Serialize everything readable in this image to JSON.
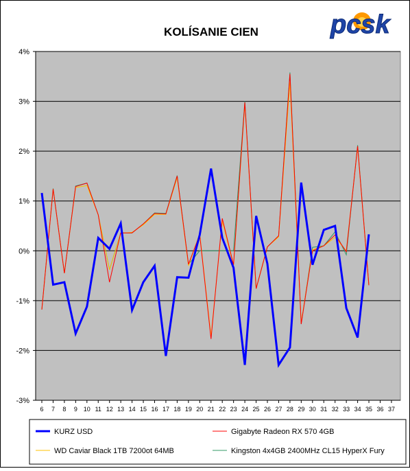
{
  "chart_data": {
    "type": "line",
    "title": "KOLÍSANIE CIEN",
    "logo": "pcsk",
    "ylim": [
      -3,
      4
    ],
    "yticks": [
      "-3%",
      "-2%",
      "-1%",
      "0%",
      "1%",
      "2%",
      "3%",
      "4%"
    ],
    "yticks_values": [
      -3,
      -2,
      -1,
      0,
      1,
      2,
      3,
      4
    ],
    "x": [
      6,
      7,
      8,
      9,
      10,
      11,
      12,
      13,
      14,
      15,
      16,
      17,
      18,
      19,
      20,
      21,
      22,
      23,
      24,
      25,
      26,
      27,
      28,
      29,
      30,
      31,
      32,
      33,
      34,
      35,
      36,
      37
    ],
    "grid": "horizontal",
    "legend_placement": "bottom",
    "series": [
      {
        "name": "KURZ USD",
        "color": "#0000ff",
        "x": [
          6,
          7,
          8,
          9,
          10,
          11,
          12,
          13,
          14,
          15,
          16,
          17,
          18,
          19,
          20,
          21,
          22,
          23,
          24,
          25,
          26,
          27,
          28,
          29,
          30,
          31,
          32,
          33,
          34,
          35
        ],
        "values": [
          1.16,
          -0.68,
          -0.63,
          -1.66,
          -1.12,
          0.26,
          0.04,
          0.55,
          -1.19,
          -0.63,
          -0.3,
          -2.11,
          -0.53,
          -0.54,
          0.32,
          1.65,
          0.26,
          -0.34,
          -2.29,
          0.7,
          -0.26,
          -2.29,
          -1.94,
          1.37,
          -0.28,
          0.42,
          0.5,
          -1.15,
          -1.74,
          0.33
        ]
      },
      {
        "name": "Gigabyte Radeon RX 570 4GB",
        "color": "#ff0000",
        "x": [
          6,
          7,
          8,
          9,
          10,
          11,
          12,
          13,
          14,
          15,
          16,
          17,
          18,
          19,
          20,
          21,
          22,
          23,
          24,
          25,
          26,
          27,
          28,
          29,
          30,
          31,
          32,
          33,
          34,
          35
        ],
        "values": [
          -1.18,
          1.24,
          -0.45,
          1.29,
          1.36,
          0.72,
          -0.63,
          0.36,
          0.36,
          0.54,
          0.75,
          0.74,
          1.5,
          -0.27,
          0.32,
          -1.77,
          0.65,
          -0.28,
          2.98,
          -0.76,
          0.08,
          0.3,
          3.55,
          -1.47,
          0.0,
          0.1,
          0.32,
          -0.02,
          2.1,
          -0.69
        ]
      },
      {
        "name": "WD Caviar Black 1TB 7200ot 64MB",
        "color": "#ffc000",
        "x": [
          6,
          7,
          8,
          9,
          10,
          11,
          12,
          13,
          14,
          15,
          16,
          17,
          18,
          19,
          20,
          21,
          22,
          23,
          24,
          25,
          26,
          27,
          28,
          29,
          30,
          31,
          32,
          33,
          34,
          35
        ],
        "values": [
          -1.18,
          1.24,
          -0.45,
          1.27,
          1.31,
          0.72,
          -0.38,
          0.35,
          0.37,
          0.52,
          0.73,
          0.73,
          1.47,
          -0.3,
          0.35,
          -1.72,
          0.6,
          -0.3,
          2.95,
          -0.76,
          0.08,
          0.28,
          3.38,
          -1.45,
          0.02,
          0.1,
          0.27,
          0.0,
          2.09,
          -0.69
        ]
      },
      {
        "name": "Kingston 4x4GB 2400MHz CL15 HyperX Fury",
        "color": "#339966",
        "x": [
          6,
          7,
          8,
          9,
          10,
          11,
          12,
          13,
          14,
          15,
          16,
          17,
          18,
          19,
          20,
          21,
          22,
          23,
          24,
          25,
          26,
          27,
          28,
          29,
          30,
          31,
          32,
          33,
          34,
          35
        ],
        "values": [
          -1.18,
          1.25,
          -0.45,
          1.3,
          1.36,
          0.72,
          -0.38,
          0.36,
          0.36,
          0.54,
          0.76,
          0.75,
          1.51,
          -0.27,
          0.0,
          0.0,
          0.0,
          0.0,
          3.0,
          -0.76,
          0.08,
          0.3,
          3.58,
          -1.47,
          0.07,
          0.1,
          0.38,
          -0.08,
          2.12,
          -0.69
        ]
      }
    ]
  }
}
